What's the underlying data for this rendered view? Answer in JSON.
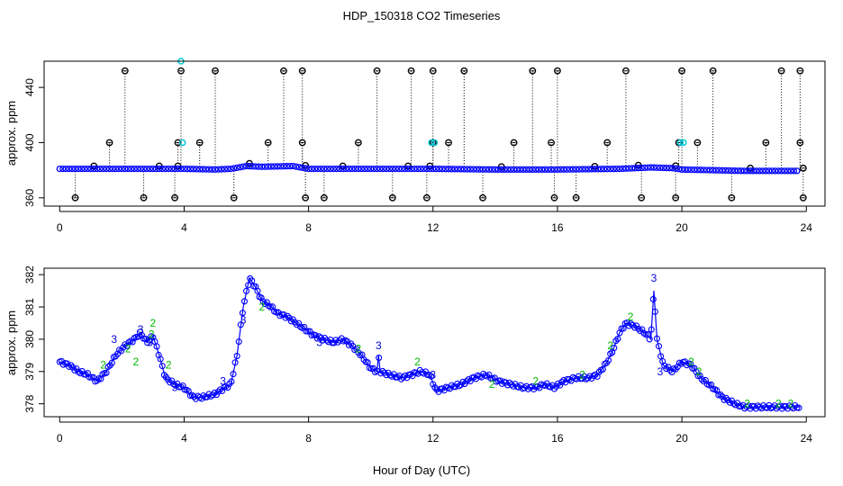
{
  "figure": {
    "title": "HDP_150318  CO2 Timeseries",
    "xlabel": "Hour of Day (UTC)"
  },
  "colors": {
    "axis": "#000000",
    "raw_series": "#000000",
    "calibration_points": "#00c8d8",
    "main_series": "#0000ff",
    "label_2": "#00bb00",
    "label_3": "#0000dd"
  },
  "chart_data": [
    {
      "type": "scatter",
      "title": "",
      "xlabel": "",
      "ylabel": "approx. ppm",
      "xlim": [
        -0.5,
        24.6
      ],
      "ylim": [
        354,
        459
      ],
      "xticks": [
        0,
        4,
        8,
        12,
        16,
        20,
        24
      ],
      "yticks": [
        360,
        400,
        440
      ],
      "grid": false,
      "baseline": [
        [
          0,
          381
        ],
        [
          2,
          381
        ],
        [
          4,
          381
        ],
        [
          5,
          380.5
        ],
        [
          5.5,
          381
        ],
        [
          6,
          383
        ],
        [
          6.5,
          382.5
        ],
        [
          7.5,
          383
        ],
        [
          8,
          381
        ],
        [
          10,
          381
        ],
        [
          12,
          381
        ],
        [
          14,
          380.5
        ],
        [
          16,
          380.5
        ],
        [
          18,
          381
        ],
        [
          19,
          382
        ],
        [
          19.7,
          381.5
        ],
        [
          20,
          380.5
        ],
        [
          21,
          380
        ],
        [
          22,
          379.5
        ],
        [
          23.8,
          379.5
        ]
      ],
      "spikes_high": [
        2.1,
        3.9,
        5.0,
        7.2,
        7.8,
        10.2,
        11.3,
        12.0,
        13.0,
        15.2,
        16.0,
        18.2,
        20.0,
        21.0,
        23.2,
        23.8
      ],
      "spikes_mid": [
        1.6,
        3.8,
        4.5,
        6.7,
        7.8,
        9.6,
        12.0,
        12.5,
        14.6,
        15.8,
        17.6,
        19.9,
        20.5,
        22.7,
        23.8
      ],
      "spikes_low": [
        0.5,
        2.7,
        3.7,
        5.6,
        7.9,
        8.5,
        10.7,
        11.8,
        13.6,
        15.9,
        16.6,
        18.7,
        19.8,
        21.6,
        23.9
      ],
      "spikes_small": [
        1.1,
        3.2,
        3.8,
        6.1,
        7.9,
        9.1,
        11.2,
        11.9,
        14.2,
        17.2,
        18.6,
        19.8,
        22.2,
        23.9
      ],
      "highlight_points": [
        [
          3.95,
          400
        ],
        [
          11.95,
          400
        ],
        [
          12.05,
          400
        ],
        [
          19.95,
          400
        ],
        [
          20.05,
          400
        ],
        [
          3.9,
          459
        ]
      ]
    },
    {
      "type": "line",
      "title": "",
      "xlabel": "Hour of Day (UTC)",
      "ylabel": "approx. ppm",
      "xlim": [
        -0.5,
        24.6
      ],
      "ylim": [
        377.6,
        382.2
      ],
      "xticks": [
        0,
        4,
        8,
        12,
        16,
        20,
        24
      ],
      "yticks": [
        378,
        379,
        380,
        381,
        382
      ],
      "grid": false,
      "series": [
        {
          "marker": "3",
          "points": [
            [
              0,
              379.3
            ],
            [
              0.3,
              379.2
            ],
            [
              0.6,
              379.0
            ],
            [
              0.9,
              378.9
            ],
            [
              1.2,
              378.7
            ],
            [
              1.5,
              379.0
            ],
            [
              1.8,
              379.5
            ],
            [
              2.1,
              379.8
            ],
            [
              2.4,
              380.0
            ],
            [
              2.6,
              380.2
            ],
            [
              2.8,
              379.9
            ],
            [
              3.0,
              380.1
            ],
            [
              3.2,
              379.5
            ],
            [
              3.4,
              378.8
            ],
            [
              3.7,
              378.6
            ],
            [
              4.0,
              378.5
            ],
            [
              4.3,
              378.2
            ],
            [
              4.6,
              378.2
            ],
            [
              5.0,
              378.3
            ],
            [
              5.3,
              378.5
            ],
            [
              5.5,
              378.6
            ],
            [
              5.7,
              379.5
            ],
            [
              5.9,
              381.0
            ],
            [
              6.1,
              381.9
            ],
            [
              6.3,
              381.6
            ],
            [
              6.5,
              381.2
            ],
            [
              6.8,
              381.0
            ],
            [
              7.0,
              380.8
            ],
            [
              7.3,
              380.7
            ],
            [
              7.6,
              380.5
            ],
            [
              7.9,
              380.3
            ],
            [
              8.2,
              380.1
            ],
            [
              8.5,
              380.0
            ],
            [
              8.8,
              379.9
            ],
            [
              9.1,
              380.0
            ],
            [
              9.4,
              379.8
            ],
            [
              9.7,
              379.5
            ],
            [
              10.0,
              379.1
            ],
            [
              10.2,
              379.0
            ],
            [
              10.25,
              379.5
            ],
            [
              10.3,
              379.0
            ],
            [
              10.6,
              378.9
            ],
            [
              11.0,
              378.8
            ],
            [
              11.3,
              378.9
            ],
            [
              11.6,
              379.0
            ],
            [
              11.9,
              378.9
            ],
            [
              12.1,
              378.4
            ],
            [
              12.5,
              378.5
            ],
            [
              12.9,
              378.6
            ],
            [
              13.3,
              378.8
            ],
            [
              13.7,
              378.9
            ],
            [
              14.1,
              378.7
            ],
            [
              14.5,
              378.6
            ],
            [
              14.9,
              378.5
            ],
            [
              15.3,
              378.5
            ],
            [
              15.6,
              378.6
            ],
            [
              15.9,
              378.5
            ],
            [
              16.2,
              378.7
            ],
            [
              16.6,
              378.8
            ],
            [
              17.0,
              378.8
            ],
            [
              17.3,
              378.9
            ],
            [
              17.6,
              379.3
            ],
            [
              17.8,
              379.7
            ],
            [
              18.0,
              380.2
            ],
            [
              18.2,
              380.5
            ],
            [
              18.5,
              380.4
            ],
            [
              18.8,
              380.2
            ],
            [
              19.0,
              380.0
            ],
            [
              19.1,
              381.5
            ],
            [
              19.2,
              380.0
            ],
            [
              19.4,
              379.2
            ],
            [
              19.7,
              379.0
            ],
            [
              20.0,
              379.3
            ],
            [
              20.3,
              379.2
            ],
            [
              20.6,
              378.8
            ],
            [
              21.0,
              378.5
            ],
            [
              21.3,
              378.2
            ],
            [
              21.7,
              378.0
            ],
            [
              22.0,
              377.9
            ],
            [
              22.5,
              377.9
            ],
            [
              23.0,
              377.9
            ],
            [
              23.5,
              377.9
            ],
            [
              23.8,
              377.9
            ]
          ]
        }
      ],
      "annotations_3": [
        [
          1.75,
          380.0
        ],
        [
          2.6,
          380.3
        ],
        [
          2.9,
          379.9
        ],
        [
          3.7,
          378.5
        ],
        [
          5.25,
          378.7
        ],
        [
          5.9,
          380.6
        ],
        [
          8.35,
          379.9
        ],
        [
          10.25,
          379.8
        ],
        [
          12.0,
          378.9
        ],
        [
          19.1,
          381.9
        ],
        [
          19.3,
          379.0
        ]
      ],
      "annotations_2": [
        [
          1.4,
          379.2
        ],
        [
          2.2,
          379.7
        ],
        [
          2.45,
          379.3
        ],
        [
          3.0,
          380.5
        ],
        [
          2.95,
          380.15
        ],
        [
          3.5,
          379.2
        ],
        [
          6.5,
          381.0
        ],
        [
          9.6,
          379.7
        ],
        [
          11.5,
          379.3
        ],
        [
          13.9,
          378.6
        ],
        [
          15.3,
          378.7
        ],
        [
          16.8,
          378.9
        ],
        [
          17.7,
          379.8
        ],
        [
          18.35,
          380.7
        ],
        [
          20.3,
          379.3
        ],
        [
          20.55,
          379.0
        ],
        [
          22.1,
          378.0
        ],
        [
          23.1,
          378.0
        ],
        [
          23.5,
          378.0
        ]
      ]
    }
  ]
}
